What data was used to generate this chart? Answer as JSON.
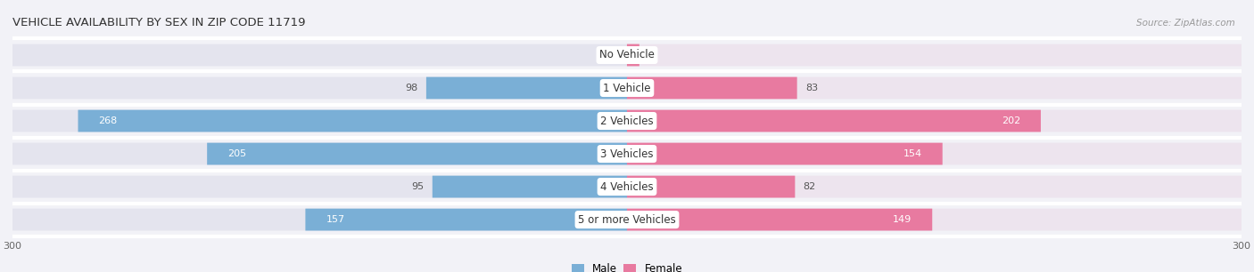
{
  "title": "VEHICLE AVAILABILITY BY SEX IN ZIP CODE 11719",
  "source": "Source: ZipAtlas.com",
  "categories": [
    "No Vehicle",
    "1 Vehicle",
    "2 Vehicles",
    "3 Vehicles",
    "4 Vehicles",
    "5 or more Vehicles"
  ],
  "male_values": [
    0,
    98,
    268,
    205,
    95,
    157
  ],
  "female_values": [
    6,
    83,
    202,
    154,
    82,
    149
  ],
  "male_color": "#7aafd6",
  "female_color": "#e87aa0",
  "male_color_light": "#aecde8",
  "female_color_light": "#f0b0c8",
  "xlim": 300,
  "background_color": "#f2f2f7",
  "bar_bg_color_left": "#e4e4ee",
  "bar_bg_color_right": "#ede4ee",
  "row_bg_color": "#f2f2f7",
  "divider_color": "#ffffff",
  "bar_height": 0.62,
  "title_fontsize": 9.5,
  "label_fontsize": 8.5,
  "value_fontsize": 8,
  "source_fontsize": 7.5,
  "inside_threshold": 130
}
